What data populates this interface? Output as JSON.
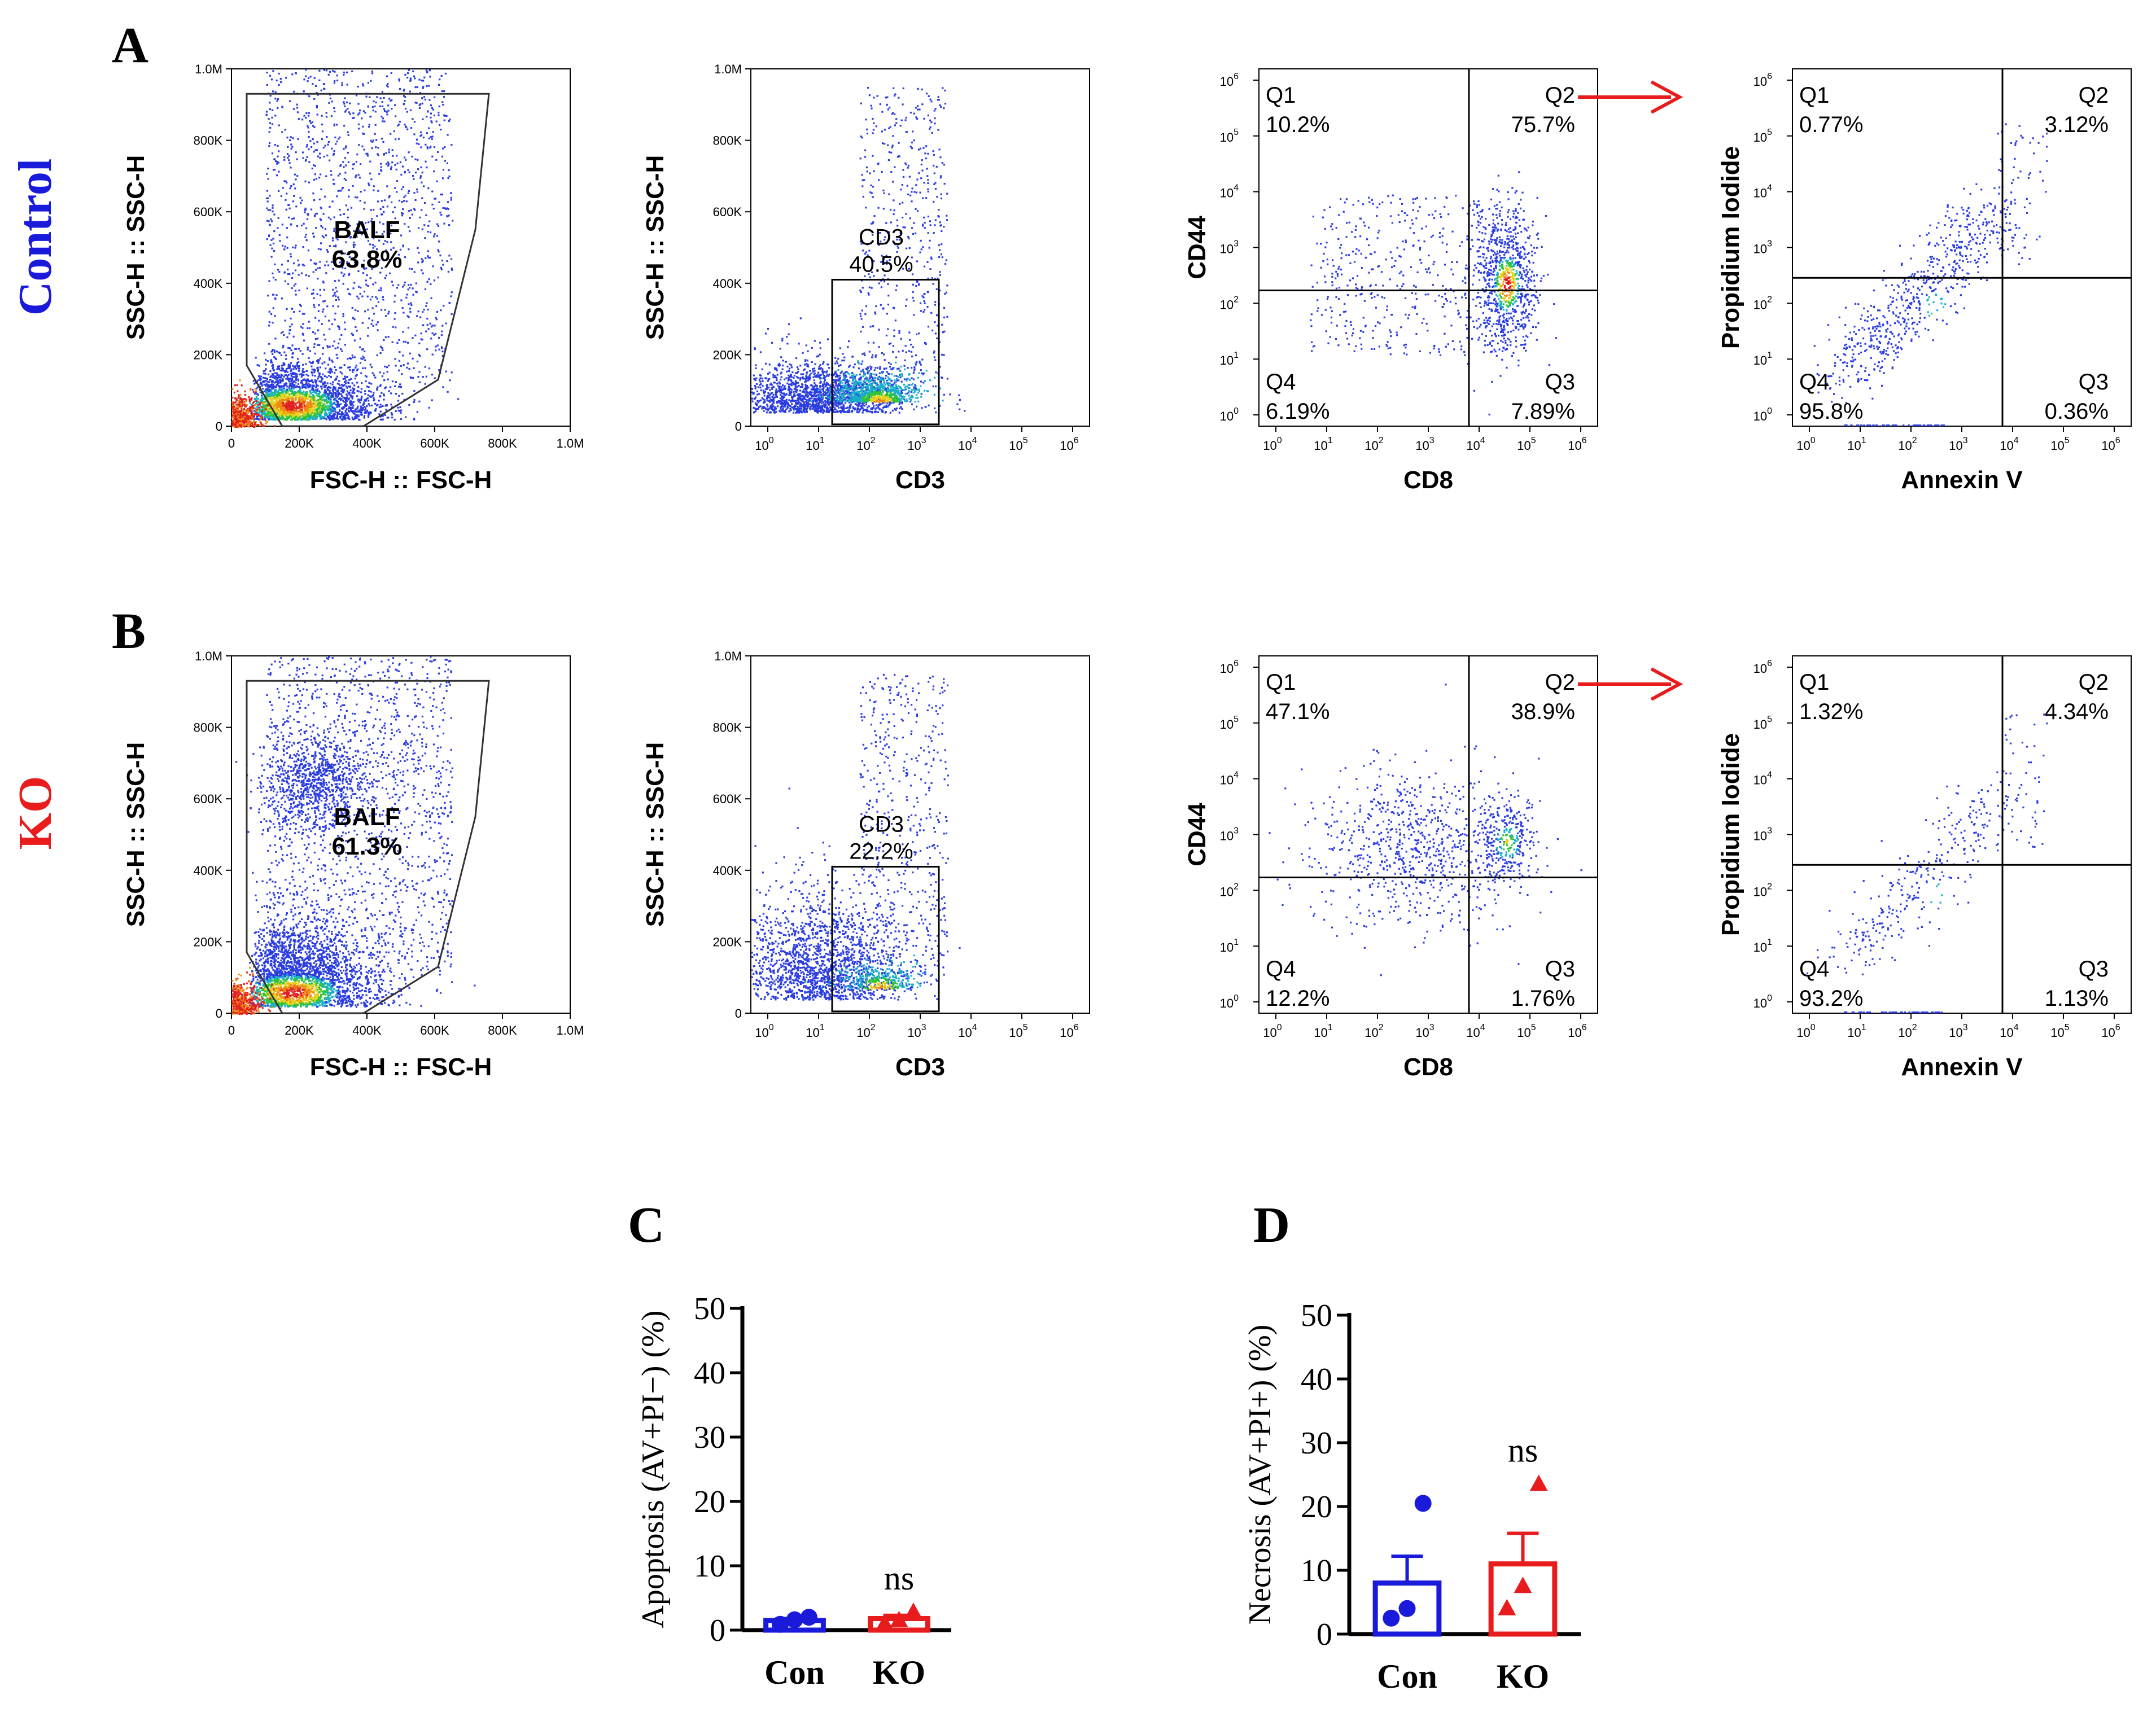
{
  "figure": {
    "panel_letters": [
      "A",
      "B",
      "C",
      "D"
    ],
    "rows": [
      {
        "label": "Control",
        "color": "#1a1adb"
      },
      {
        "label": "KO",
        "color": "#e81c1c"
      }
    ]
  },
  "colors": {
    "blue": "#1a1adb",
    "red": "#e81c1c",
    "black": "#000000",
    "arrow": "#e81c1c"
  },
  "chart_data": [
    {
      "type": "scatter",
      "id": "A1",
      "row": "Control",
      "xlabel": "FSC-H :: FSC-H",
      "ylabel": "SSC-H :: SSC-H",
      "x_ticks": [
        "0",
        "200K",
        "400K",
        "600K",
        "800K",
        "1.0M"
      ],
      "y_ticks": [
        "0",
        "200K",
        "400K",
        "600K",
        "800K",
        "1.0M"
      ],
      "xlim": [
        0,
        1000000
      ],
      "ylim": [
        0,
        1000000
      ],
      "gates": [
        {
          "name": "BALF",
          "value": "63.8%"
        }
      ]
    },
    {
      "type": "scatter",
      "id": "A2",
      "row": "Control",
      "xlabel": "CD3",
      "ylabel": "SSC-H :: SSC-H",
      "x_scale": "log",
      "xlim": [
        0.5,
        1000000
      ],
      "y_ticks": [
        "0",
        "200K",
        "400K",
        "600K",
        "800K",
        "1.0M"
      ],
      "ylim": [
        0,
        1000000
      ],
      "gates": [
        {
          "name": "CD3",
          "value": "40.5%"
        }
      ]
    },
    {
      "type": "scatter",
      "id": "A3",
      "row": "Control",
      "xlabel": "CD8",
      "ylabel": "CD44",
      "x_scale": "log",
      "y_scale": "log",
      "quadrants": [
        {
          "name": "Q1",
          "value": "10.2%"
        },
        {
          "name": "Q2",
          "value": "75.7%"
        },
        {
          "name": "Q3",
          "value": "7.89%"
        },
        {
          "name": "Q4",
          "value": "6.19%"
        }
      ]
    },
    {
      "type": "scatter",
      "id": "A4",
      "row": "Control",
      "xlabel": "Annexin V",
      "ylabel": "Propidium Iodide",
      "x_scale": "log",
      "y_scale": "log",
      "quadrants": [
        {
          "name": "Q1",
          "value": "0.77%"
        },
        {
          "name": "Q2",
          "value": "3.12%"
        },
        {
          "name": "Q3",
          "value": "0.36%"
        },
        {
          "name": "Q4",
          "value": "95.8%"
        }
      ]
    },
    {
      "type": "scatter",
      "id": "B1",
      "row": "KO",
      "xlabel": "FSC-H :: FSC-H",
      "ylabel": "SSC-H :: SSC-H",
      "x_ticks": [
        "0",
        "200K",
        "400K",
        "600K",
        "800K",
        "1.0M"
      ],
      "y_ticks": [
        "0",
        "200K",
        "400K",
        "600K",
        "800K",
        "1.0M"
      ],
      "xlim": [
        0,
        1000000
      ],
      "ylim": [
        0,
        1000000
      ],
      "gates": [
        {
          "name": "BALF",
          "value": "61.3%"
        }
      ]
    },
    {
      "type": "scatter",
      "id": "B2",
      "row": "KO",
      "xlabel": "CD3",
      "ylabel": "SSC-H :: SSC-H",
      "x_scale": "log",
      "xlim": [
        0.5,
        1000000
      ],
      "y_ticks": [
        "0",
        "200K",
        "400K",
        "600K",
        "800K",
        "1.0M"
      ],
      "ylim": [
        0,
        1000000
      ],
      "gates": [
        {
          "name": "CD3",
          "value": "22.2%"
        }
      ]
    },
    {
      "type": "scatter",
      "id": "B3",
      "row": "KO",
      "xlabel": "CD8",
      "ylabel": "CD44",
      "x_scale": "log",
      "y_scale": "log",
      "quadrants": [
        {
          "name": "Q1",
          "value": "47.1%"
        },
        {
          "name": "Q2",
          "value": "38.9%"
        },
        {
          "name": "Q3",
          "value": "1.76%"
        },
        {
          "name": "Q4",
          "value": "12.2%"
        }
      ]
    },
    {
      "type": "scatter",
      "id": "B4",
      "row": "KO",
      "xlabel": "Annexin V",
      "ylabel": "Propidium Iodide",
      "x_scale": "log",
      "y_scale": "log",
      "quadrants": [
        {
          "name": "Q1",
          "value": "1.32%"
        },
        {
          "name": "Q2",
          "value": "4.34%"
        },
        {
          "name": "Q3",
          "value": "1.13%"
        },
        {
          "name": "Q4",
          "value": "93.2%"
        }
      ]
    },
    {
      "type": "bar",
      "id": "C",
      "ylabel": "Apoptosis (AV+PI−) (%)",
      "categories": [
        "Con",
        "KO"
      ],
      "values": [
        1.5,
        1.8
      ],
      "errors": [
        0.3,
        0.5
      ],
      "points": [
        [
          0.9,
          1.6,
          2.0
        ],
        [
          1.0,
          1.5,
          2.8
        ]
      ],
      "ylim": [
        0,
        50
      ],
      "y_ticks": [
        0,
        10,
        20,
        30,
        40,
        50
      ],
      "annotation": "ns"
    },
    {
      "type": "bar",
      "id": "D",
      "ylabel": "Necrosis (AV+PI+) (%)",
      "categories": [
        "Con",
        "KO"
      ],
      "values": [
        8.0,
        11.0
      ],
      "errors": [
        4.2,
        4.8
      ],
      "points": [
        [
          2.5,
          4.0,
          20.5
        ],
        [
          4.0,
          7.5,
          23.5
        ]
      ],
      "ylim": [
        0,
        50
      ],
      "y_ticks": [
        0,
        10,
        20,
        30,
        40,
        50
      ],
      "annotation": "ns"
    }
  ]
}
